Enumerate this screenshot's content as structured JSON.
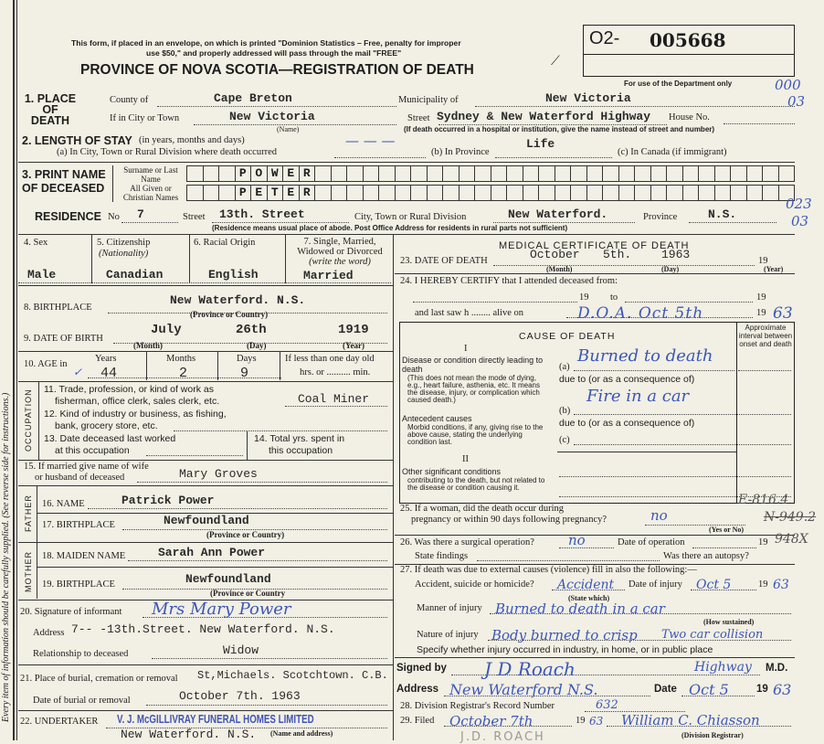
{
  "margin_note": "Every item of information should be carefully supplied. (See reverse side for instructions.)",
  "header": {
    "mail_note_1": "This form, if placed in an envelope, on which is printed \"Dominion Statistics – Free, penalty for improper",
    "mail_note_2": "use $50,\" and properly addressed will pass through the mail \"FREE\"",
    "title": "PROVINCE OF NOVA SCOTIA—REGISTRATION OF DEATH",
    "reg_prefix": "O2-",
    "reg_number": "005668",
    "dept_only": "For use of the Department only"
  },
  "place_of_death": {
    "label": "1. PLACE OF DEATH",
    "county_label": "County of",
    "county": "Cape Breton",
    "municipality_label": "Municipality of",
    "municipality": "New Victoria",
    "city_label": "If in City or Town",
    "city": "New Victoria",
    "name_hint": "(Name)",
    "street_label": "Street",
    "street": "Sydney & New Waterford Highway",
    "house_label": "House No.",
    "hospital_note": "(If death occurred in a hospital or institution, give the name instead of street and number)",
    "margin_code_1": "000",
    "margin_code_2": "03"
  },
  "length_of_stay": {
    "label": "2. LENGTH OF STAY",
    "hint": "(in years, months and days)",
    "a_label": "(a) In City, Town or Rural Division where death occurred",
    "a_value": "— — —",
    "b_label": "(b) In Province",
    "b_value": "Life",
    "c_label": "(c) In Canada (if immigrant)"
  },
  "name": {
    "label_1": "3. PRINT NAME",
    "label_2": "OF DECEASED",
    "surname_label": "Surname or Last Name",
    "given_label": "All Given or Christian Names",
    "surname_letters": [
      "P",
      "O",
      "W",
      "E",
      "R"
    ],
    "given_letters": [
      "P",
      "E",
      "T",
      "E",
      "R"
    ]
  },
  "residence": {
    "label": "RESIDENCE",
    "no_label": "No",
    "no": "7",
    "street_label": "Street",
    "street": "13th. Street",
    "city_label": "City, Town or Rural Division",
    "city": "New Waterford.",
    "province_label": "Province",
    "province": "N.S.",
    "note": "(Residence means usual place of abode. Post Office Address for residents in rural parts not sufficient)",
    "margin_code_1": "023",
    "margin_code_2": "03"
  },
  "personal": {
    "sex_label": "4. Sex",
    "sex": "Male",
    "citizenship_label": "5. Citizenship",
    "citizenship_hint": "(Nationality)",
    "citizenship": "Canadian",
    "racial_label": "6. Racial Origin",
    "racial": "English",
    "marital_label": "7. Single, Married, Widowed or Divorced",
    "marital_hint": "(write the word)",
    "marital": "Married",
    "birthplace_label": "8. BIRTHPLACE",
    "birthplace": "New Waterford.   N.S.",
    "province_hint": "(Province or Country)",
    "dob_label": "9. DATE OF BIRTH",
    "dob_month": "July",
    "dob_day": "26th",
    "dob_year": "1919",
    "month_hint": "(Month)",
    "day_hint": "(Day)",
    "year_hint": "(Year)",
    "age_label": "10. AGE in",
    "years_label": "Years",
    "years": "44",
    "months_label": "Months",
    "months": "2",
    "days_label": "Days",
    "days": "9",
    "less_label": "If less than one day old",
    "hrs_label": "hrs. or .......... min."
  },
  "occupation": {
    "side_label": "OCCUPATION",
    "trade_label_1": "11. Trade, profession, or kind of work as",
    "trade_label_2": "fisherman, office clerk, sales clerk, etc.",
    "trade": "Coal Miner",
    "industry_label_1": "12. Kind of industry or business, as fishing,",
    "industry_label_2": "bank, grocery store, etc.",
    "last_worked_label_1": "13. Date deceased last worked",
    "last_worked_label_2": "at this occupation",
    "years_spent_label_1": "14. Total yrs. spent in",
    "years_spent_label_2": "this occupation"
  },
  "spouse": {
    "label_1": "15. If married give name of wife",
    "label_2": "or husband of deceased",
    "value": "Mary   Groves"
  },
  "father": {
    "side_label": "FATHER",
    "name_label": "16. NAME",
    "name": "Patrick  Power",
    "birthplace_label": "17. BIRTHPLACE",
    "birthplace": "Newfoundland"
  },
  "mother": {
    "side_label": "MOTHER",
    "name_label": "18. MAIDEN NAME",
    "name": "Sarah  Ann  Power",
    "birthplace_label": "19. BIRTHPLACE",
    "birthplace": "Newfoundland",
    "province_hint": "(Province or Country"
  },
  "informant": {
    "signature_label": "20. Signature of informant",
    "signature": "Mrs Mary Power",
    "address_label": "Address",
    "address": "7-- -13th.Street.  New Waterford. N.S.",
    "relationship_label": "Relationship to deceased",
    "relationship": "Widow"
  },
  "burial": {
    "place_label": "21. Place of burial, cremation or removal",
    "place": "St,Michaels. Scotchtown. C.B.",
    "date_label": "Date of burial or removal",
    "date": "October 7th. 1963"
  },
  "undertaker": {
    "label": "22. UNDERTAKER",
    "name": "V. J. McGILLIVRAY FUNERAL HOMES LIMITED",
    "address": "New Waterford. N.S.",
    "hint": "(Name and address)"
  },
  "medical": {
    "title": "MEDICAL CERTIFICATE OF DEATH",
    "dod_label": "23. DATE OF DEATH",
    "dod_month": "October",
    "dod_day": "5th.",
    "dod_year": "1963",
    "nineteen": "19",
    "certify_label": "24. I HEREBY CERTIFY that I attended deceased from:",
    "to_label": "to",
    "last_saw_label": "and last saw h ........ alive on",
    "doa": "D.O.A. Oct 5th",
    "doa_year": "63",
    "cause_title": "CAUSE OF DEATH",
    "interval_label": "Approximate interval between onset and death",
    "section_1": "I",
    "section_2": "II",
    "direct_label": "Disease or condition directly leading to death",
    "direct_hint": "(This does not mean the mode of dying, e.g., heart failure, asthenia, etc. It means the disease, injury, or complication which caused death.)",
    "antecedent_label": "Antecedent causes",
    "antecedent_hint": "Morbid conditions, if any, giving rise to the above cause, stating the underlying condition last.",
    "other_label": "Other significant conditions",
    "other_hint": "contributing to the death, but not related to the disease or condition causing it.",
    "a_label": "(a)",
    "b_label": "(b)",
    "c_label": "(c)",
    "due_to": "due to (or as a consequence of)",
    "cause_a": "Burned to death",
    "cause_b": "Fire in a car",
    "pregnancy_label_1": "25. If a woman, did the death occur during",
    "pregnancy_label_2": "pregnancy or within 90 days following pregnancy?",
    "pregnancy": "no",
    "yes_no": "(Yes or No)",
    "code_e": "E-816.4",
    "code_n": "N-949.2",
    "code_n2": "948X",
    "surgery_label": "26. Was there a surgical operation?",
    "surgery": "no",
    "op_date_label": "Date of operation",
    "findings_label": "State findings",
    "autopsy_label": "Was there an autopsy?",
    "external_label": "27. If death was due to external causes (violence) fill in also the following:—",
    "accident_label": "Accident, suicide or homicide?",
    "accident": "Accident",
    "state_which": "(State which)",
    "injury_date_label": "Date of injury",
    "injury_date": "Oct 5",
    "injury_year": "63",
    "manner_label": "Manner of injury",
    "manner": "Burned to death in a car",
    "how_sustained": "(How sustained)",
    "nature_label": "Nature of injury",
    "nature": "Body burned to crisp",
    "collision": "Two car collision",
    "place_label": "Specify whether injury occurred in industry, in home, or in public place",
    "place": "Highway",
    "signed_label": "Signed by",
    "signature": "J D Roach",
    "md": "M.D.",
    "address_label": "Address",
    "address": "New Waterford N.S.",
    "date_label": "Date",
    "date": "Oct 5",
    "date_year": "63",
    "record_label": "28. Division Registrar's Record Number",
    "record": "632",
    "filed_label": "29. Filed",
    "filed": "October 7th",
    "filed_year": "63",
    "registrar": "William C. Chiasson",
    "registrar_hint": "(Division Registrar)",
    "pencil_note": "J.D. ROACH"
  }
}
